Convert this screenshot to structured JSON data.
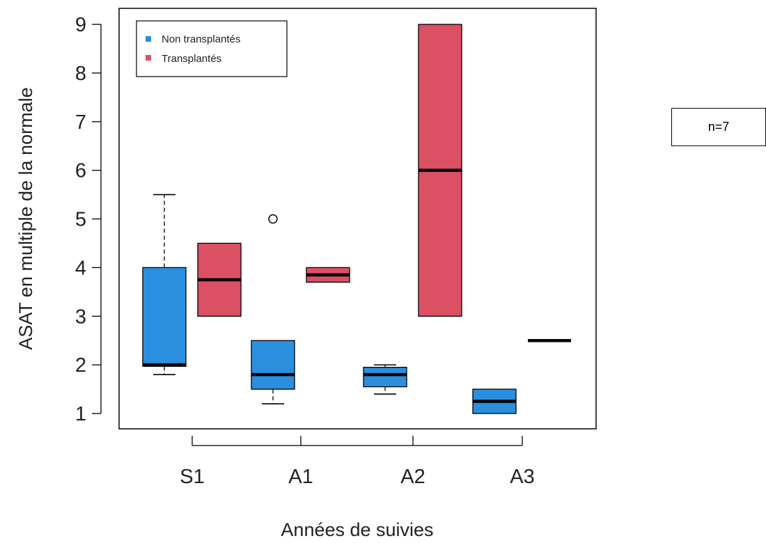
{
  "chart_data": {
    "type": "boxplot",
    "xlabel": "Années de suivies",
    "ylabel": "ASAT en multiple de la normale",
    "ylim": [
      0.7,
      9.35
    ],
    "yticks": [
      "1",
      "2",
      "3",
      "4",
      "5",
      "6",
      "7",
      "8",
      "9"
    ],
    "categories": [
      "S1",
      "A1",
      "A2",
      "A3"
    ],
    "legend": {
      "position": "top-left"
    },
    "series": [
      {
        "name": "Non transplantés",
        "color": "#2B8FE0",
        "boxes": [
          {
            "category": "S1",
            "min": 1.8,
            "q1": 1.97,
            "median": 2.0,
            "q3": 4.0,
            "max": 5.5,
            "outliers": []
          },
          {
            "category": "A1",
            "min": 1.2,
            "q1": 1.5,
            "median": 1.8,
            "q3": 2.5,
            "max": 2.5,
            "outliers": [
              5.0
            ]
          },
          {
            "category": "A2",
            "min": 1.4,
            "q1": 1.55,
            "median": 1.8,
            "q3": 1.95,
            "max": 2.0,
            "outliers": []
          },
          {
            "category": "A3",
            "min": 1.0,
            "q1": 1.0,
            "median": 1.25,
            "q3": 1.5,
            "max": 1.5,
            "outliers": []
          }
        ]
      },
      {
        "name": "Transplantés",
        "color": "#DC5064",
        "boxes": [
          {
            "category": "S1",
            "min": 3.0,
            "q1": 3.0,
            "median": 3.75,
            "q3": 4.5,
            "max": 4.5,
            "outliers": []
          },
          {
            "category": "A1",
            "min": 3.7,
            "q1": 3.7,
            "median": 3.85,
            "q3": 4.0,
            "max": 4.0,
            "outliers": []
          },
          {
            "category": "A2",
            "min": 3.0,
            "q1": 3.0,
            "median": 6.0,
            "q3": 9.0,
            "max": 9.0,
            "outliers": []
          },
          {
            "category": "A3",
            "min": 2.5,
            "q1": 2.5,
            "median": 2.5,
            "q3": 2.5,
            "max": 2.5,
            "outliers": []
          }
        ]
      }
    ],
    "annotation": "n=7"
  }
}
